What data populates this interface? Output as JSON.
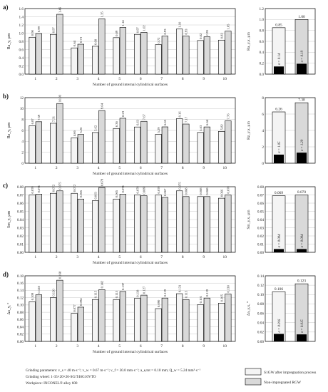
{
  "panel_letters": [
    "a)",
    "b)",
    "c)",
    "d)"
  ],
  "footer": {
    "lines": [
      "Grinding parameters: v_s = 40 m·s⁻¹; v_w = 0.67 m·s⁻¹; v_f = 30.0 mm·s⁻¹; a_e,tot = 0.10 mm; Q_w = 5.24 mm³·s⁻¹",
      "Grinding wheel: 1-35×20×26-SG/T46G10VTO",
      "Workpiece: INCONEL® alloy 600"
    ]
  },
  "legend": [
    {
      "label": "S1GW after impregnation process",
      "color": "#f4f4f4"
    },
    {
      "label": "Non-impregnated RGW",
      "color": "#d9d9d9"
    }
  ],
  "chart_data": [
    {
      "type": "bar",
      "ylabel": "Ra_y, µm",
      "xlabel": "Number of ground internal cylindrical surfaces",
      "categories": [
        "1",
        "2",
        "3",
        "4",
        "5",
        "6",
        "7",
        "8",
        "9",
        "10"
      ],
      "ylim": [
        0,
        1.6
      ],
      "yticks": [
        "0.0",
        "0.2",
        "0.4",
        "0.6",
        "0.8",
        "1.0",
        "1.2",
        "1.4",
        "1.6"
      ],
      "series": [
        {
          "name": "S1GW after impregnation process",
          "values": [
            0.9,
            0.97,
            0.64,
            0.68,
            0.89,
            0.97,
            0.72,
            1.1,
            0.82,
            0.83
          ],
          "labels": [
            "0.90",
            "0.97",
            "0.64",
            "0.68",
            "0.89",
            "0.97",
            "0.72",
            "1.10",
            "0.82",
            "0.83"
          ]
        },
        {
          "name": "Non-impregnated RGW",
          "values": [
            0.99,
            1.46,
            0.73,
            1.35,
            1.14,
            1.02,
            0.93,
            0.93,
            0.91,
            1.05
          ],
          "labels": [
            "0.99",
            "1.46",
            "0.73",
            "1.35",
            "1.14",
            "1.02",
            "0.93",
            "0.93",
            "0.91",
            "1.05"
          ]
        }
      ],
      "summary": {
        "ylabel": "Ra_y,x, µm",
        "ylim": [
          0,
          1.2
        ],
        "yticks": [
          "0.0",
          "0.2",
          "0.4",
          "0.6",
          "0.8",
          "1.0",
          "1.2"
        ],
        "means": [
          0.85,
          1.0
        ],
        "mean_labels": [
          "0.85",
          "1.00"
        ],
        "sigmas": [
          0.14,
          0.19
        ],
        "sigma_labels": [
          "σ = 0.14",
          "σ = 0.19"
        ]
      }
    },
    {
      "type": "bar",
      "ylabel": "Rz_y, µm",
      "xlabel": "Number of ground internal cylindrical surfaces",
      "categories": [
        "1",
        "2",
        "3",
        "4",
        "5",
        "6",
        "7",
        "8",
        "9",
        "10"
      ],
      "ylim": [
        0,
        12
      ],
      "yticks": [
        "0",
        "2",
        "4",
        "6",
        "8",
        "10",
        "12"
      ],
      "series": [
        {
          "name": "S1GW after impregnation process",
          "values": [
            6.87,
            7.31,
            4.66,
            5.62,
            6.36,
            6.63,
            5.29,
            8.16,
            5.63,
            5.82
          ],
          "labels": [
            "6.87",
            "7.31",
            "4.66",
            "5.62",
            "6.36",
            "6.63",
            "5.29",
            "8.16",
            "5.63",
            "5.82"
          ]
        },
        {
          "name": "Non-impregnated RGW",
          "values": [
            7.59,
            10.93,
            5.26,
            9.64,
            8.23,
            7.67,
            6.65,
            7.17,
            6.64,
            7.76
          ],
          "labels": [
            "7.59",
            "10.93",
            "5.26",
            "9.64",
            "8.23",
            "7.67",
            "6.65",
            "7.17",
            "6.64",
            "7.76"
          ]
        }
      ],
      "summary": {
        "ylabel": "Rz_y,x, µm",
        "ylim": [
          0,
          8
        ],
        "yticks": [
          "0",
          "2",
          "4",
          "6",
          "8"
        ],
        "means": [
          6.26,
          7.38
        ],
        "mean_labels": [
          "6.26",
          "7.38"
        ],
        "sigmas": [
          1.05,
          1.29
        ],
        "sigma_labels": [
          "σ = 1.05",
          "σ = 1.29"
        ]
      }
    },
    {
      "type": "bar",
      "ylabel": "Sm_y, µm",
      "xlabel": "Number of ground internal cylindrical surfaces",
      "categories": [
        "1",
        "2",
        "3",
        "4",
        "5",
        "6",
        "7",
        "8",
        "9",
        "10"
      ],
      "ylim": [
        0,
        0.08
      ],
      "yticks": [
        "0.00",
        "0.01",
        "0.02",
        "0.03",
        "0.04",
        "0.05",
        "0.06",
        "0.07",
        "0.08"
      ],
      "series": [
        {
          "name": "S1GW after impregnation process",
          "values": [
            0.07,
            0.072,
            0.072,
            0.063,
            0.065,
            0.07,
            0.07,
            0.075,
            0.068,
            0.066
          ],
          "labels": [
            "0.070",
            "0.072",
            "0.072",
            "0.063",
            "0.065",
            "0.070",
            "0.070",
            "0.075",
            "0.068",
            "0.066"
          ]
        },
        {
          "name": "Non-impregnated RGW",
          "values": [
            0.071,
            0.075,
            0.065,
            0.079,
            0.071,
            0.069,
            0.067,
            0.068,
            0.068,
            0.07
          ],
          "labels": [
            "0.071",
            "0.075",
            "0.065",
            "0.079",
            "0.071",
            "0.069",
            "0.067",
            "0.068",
            "0.068",
            "0.070"
          ]
        }
      ],
      "summary": {
        "ylabel": "Sm_y,x, µm",
        "ylim": [
          0,
          0.08
        ],
        "yticks": [
          "0.00",
          "0.01",
          "0.02",
          "0.03",
          "0.04",
          "0.05",
          "0.06",
          "0.07",
          "0.08"
        ],
        "means": [
          0.069,
          0.07
        ],
        "mean_labels": [
          "0.069",
          "0.070"
        ],
        "sigmas": [
          0.004,
          0.004
        ],
        "sigma_labels": [
          "σ = 0.004",
          "σ = 0.004"
        ]
      }
    },
    {
      "type": "bar",
      "ylabel": "Δa_y, °",
      "xlabel": "Number of ground internal cylindrical surfaces",
      "categories": [
        "1",
        "2",
        "3",
        "4",
        "5",
        "6",
        "7",
        "8",
        "9",
        "10"
      ],
      "ylim": [
        0,
        0.18
      ],
      "yticks": [
        "0.00",
        "0.02",
        "0.04",
        "0.06",
        "0.08",
        "0.10",
        "0.12",
        "0.14",
        "0.16",
        "0.18"
      ],
      "series": [
        {
          "name": "S1GW after impregnation process",
          "values": [
            0.109,
            0.12,
            0.077,
            0.115,
            0.115,
            0.118,
            0.09,
            0.131,
            0.101,
            0.105
          ],
          "labels": [
            "0.109",
            "0.120",
            "0.077",
            "0.115",
            "0.115",
            "0.118",
            "0.090",
            "0.131",
            "0.101",
            "0.105"
          ]
        },
        {
          "name": "Non-impregnated RGW",
          "values": [
            0.128,
            0.168,
            0.094,
            0.142,
            0.137,
            0.127,
            0.119,
            0.115,
            0.119,
            0.13
          ],
          "labels": [
            "0.128",
            "0.168",
            "0.094",
            "0.142",
            "0.137",
            "0.127",
            "0.119",
            "0.115",
            "0.119",
            "0.130"
          ]
        }
      ],
      "summary": {
        "ylabel": "Δa_y,x, °",
        "ylim": [
          0,
          0.14
        ],
        "yticks": [
          "0.00",
          "0.02",
          "0.04",
          "0.06",
          "0.08",
          "0.10",
          "0.12",
          "0.14"
        ],
        "means": [
          0.106,
          0.123
        ],
        "mean_labels": [
          "0.106",
          "0.123"
        ],
        "sigmas": [
          0.016,
          0.015
        ],
        "sigma_labels": [
          "σ = 0.016",
          "σ = 0.015"
        ]
      }
    }
  ]
}
